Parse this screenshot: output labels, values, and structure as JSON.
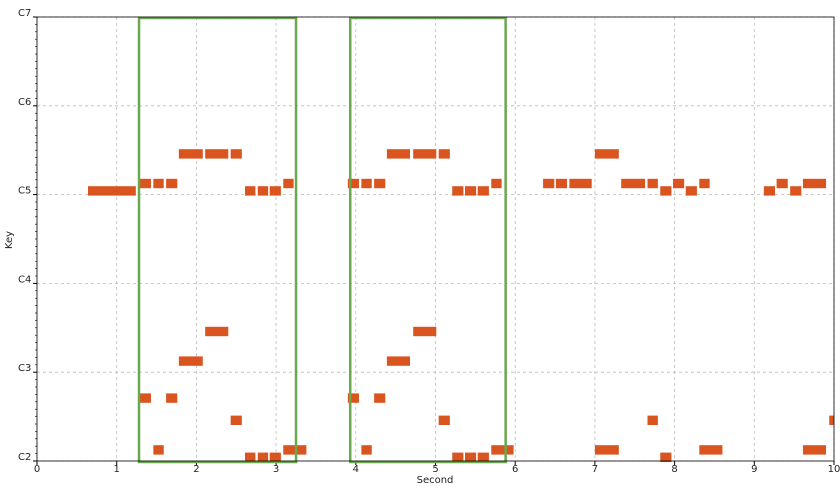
{
  "chart_data": {
    "type": "pianoroll",
    "x_label": "Second",
    "y_label": "Key",
    "xlim": [
      0,
      10
    ],
    "xticks": [
      0,
      1,
      2,
      3,
      4,
      5,
      6,
      7,
      8,
      9,
      10
    ],
    "ylim": [
      36,
      96
    ],
    "yticks": [
      {
        "value": 36,
        "label": "C2"
      },
      {
        "value": 48,
        "label": "C3"
      },
      {
        "value": 60,
        "label": "C4"
      },
      {
        "value": 72,
        "label": "C5"
      },
      {
        "value": 84,
        "label": "C6"
      },
      {
        "value": 96,
        "label": "C7"
      }
    ],
    "grid": true,
    "color": "#d9541e",
    "highlight_color": "#6aa84f",
    "highlights": [
      {
        "start": 1.28,
        "end": 3.25
      },
      {
        "start": 3.93,
        "end": 5.88
      }
    ],
    "notes": [
      {
        "start": 0.64,
        "end": 1.24,
        "pitch": 72
      },
      {
        "start": 2.61,
        "end": 2.74,
        "pitch": 72
      },
      {
        "start": 2.77,
        "end": 2.9,
        "pitch": 72
      },
      {
        "start": 2.92,
        "end": 3.06,
        "pitch": 72
      },
      {
        "start": 5.21,
        "end": 5.35,
        "pitch": 72
      },
      {
        "start": 5.37,
        "end": 5.51,
        "pitch": 72
      },
      {
        "start": 5.53,
        "end": 5.67,
        "pitch": 72
      },
      {
        "start": 7.82,
        "end": 7.96,
        "pitch": 72
      },
      {
        "start": 8.14,
        "end": 8.28,
        "pitch": 72
      },
      {
        "start": 9.12,
        "end": 9.26,
        "pitch": 72
      },
      {
        "start": 9.45,
        "end": 9.59,
        "pitch": 72
      },
      {
        "start": 1.29,
        "end": 1.43,
        "pitch": 73
      },
      {
        "start": 1.46,
        "end": 1.59,
        "pitch": 73
      },
      {
        "start": 1.62,
        "end": 1.76,
        "pitch": 73
      },
      {
        "start": 3.09,
        "end": 3.22,
        "pitch": 73
      },
      {
        "start": 3.9,
        "end": 4.04,
        "pitch": 73
      },
      {
        "start": 4.07,
        "end": 4.2,
        "pitch": 73
      },
      {
        "start": 4.23,
        "end": 4.37,
        "pitch": 73
      },
      {
        "start": 5.7,
        "end": 5.83,
        "pitch": 73
      },
      {
        "start": 6.35,
        "end": 6.49,
        "pitch": 73
      },
      {
        "start": 6.51,
        "end": 6.65,
        "pitch": 73
      },
      {
        "start": 6.68,
        "end": 6.96,
        "pitch": 73
      },
      {
        "start": 7.33,
        "end": 7.63,
        "pitch": 73
      },
      {
        "start": 7.66,
        "end": 7.79,
        "pitch": 73
      },
      {
        "start": 7.98,
        "end": 8.12,
        "pitch": 73
      },
      {
        "start": 8.31,
        "end": 8.44,
        "pitch": 73
      },
      {
        "start": 9.28,
        "end": 9.42,
        "pitch": 73
      },
      {
        "start": 9.61,
        "end": 9.9,
        "pitch": 73
      },
      {
        "start": 1.78,
        "end": 2.08,
        "pitch": 77
      },
      {
        "start": 2.11,
        "end": 2.4,
        "pitch": 77
      },
      {
        "start": 2.43,
        "end": 2.57,
        "pitch": 77
      },
      {
        "start": 4.39,
        "end": 4.68,
        "pitch": 77
      },
      {
        "start": 4.72,
        "end": 5.01,
        "pitch": 77
      },
      {
        "start": 5.04,
        "end": 5.18,
        "pitch": 77
      },
      {
        "start": 7.0,
        "end": 7.3,
        "pitch": 77
      },
      {
        "start": 2.11,
        "end": 2.4,
        "pitch": 53
      },
      {
        "start": 4.72,
        "end": 5.01,
        "pitch": 53
      },
      {
        "start": 1.78,
        "end": 2.08,
        "pitch": 49
      },
      {
        "start": 4.39,
        "end": 4.68,
        "pitch": 49
      },
      {
        "start": 1.29,
        "end": 1.43,
        "pitch": 44
      },
      {
        "start": 1.62,
        "end": 1.76,
        "pitch": 44
      },
      {
        "start": 3.9,
        "end": 4.04,
        "pitch": 44
      },
      {
        "start": 4.23,
        "end": 4.37,
        "pitch": 44
      },
      {
        "start": 2.43,
        "end": 2.57,
        "pitch": 41
      },
      {
        "start": 5.04,
        "end": 5.18,
        "pitch": 41
      },
      {
        "start": 7.66,
        "end": 7.79,
        "pitch": 41
      },
      {
        "start": 9.94,
        "end": 10.0,
        "pitch": 41
      },
      {
        "start": 1.46,
        "end": 1.59,
        "pitch": 37
      },
      {
        "start": 3.09,
        "end": 3.38,
        "pitch": 37
      },
      {
        "start": 4.07,
        "end": 4.2,
        "pitch": 37
      },
      {
        "start": 5.7,
        "end": 5.98,
        "pitch": 37
      },
      {
        "start": 7.0,
        "end": 7.3,
        "pitch": 37
      },
      {
        "start": 8.31,
        "end": 8.6,
        "pitch": 37
      },
      {
        "start": 9.61,
        "end": 9.9,
        "pitch": 37
      },
      {
        "start": 2.61,
        "end": 2.74,
        "pitch": 36
      },
      {
        "start": 2.77,
        "end": 2.9,
        "pitch": 36
      },
      {
        "start": 2.92,
        "end": 3.06,
        "pitch": 36
      },
      {
        "start": 5.21,
        "end": 5.35,
        "pitch": 36
      },
      {
        "start": 5.37,
        "end": 5.51,
        "pitch": 36
      },
      {
        "start": 5.53,
        "end": 5.67,
        "pitch": 36
      },
      {
        "start": 7.82,
        "end": 7.96,
        "pitch": 36
      }
    ]
  }
}
